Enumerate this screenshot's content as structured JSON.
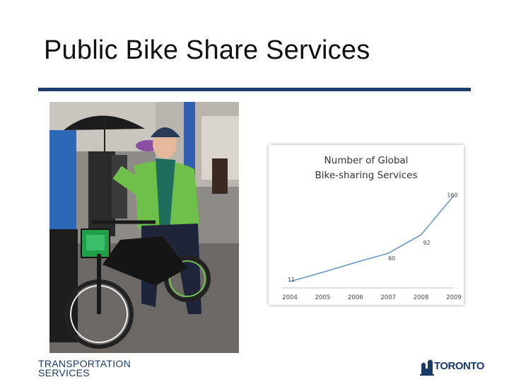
{
  "slide": {
    "title": "Public Bike Share Services",
    "footer_line1": "TRANSPORTATION",
    "footer_line2": "SERVICES",
    "logo_text": "TORONTO",
    "accent_color": "#1f3e6e",
    "logo_icon": "city-hall-icon"
  },
  "photo": {
    "subject": "woman-on-bike-photo"
  },
  "chart_data": {
    "type": "line",
    "title_line1": "Number of Global",
    "title_line2": "Bike-sharing Services",
    "categories": [
      "2004",
      "2005",
      "2006",
      "2007",
      "2008",
      "2009"
    ],
    "series": [
      {
        "values": [
          11,
          27,
          44,
          60,
          92,
          160
        ]
      }
    ],
    "data_labels": [
      {
        "index": 0,
        "text": "11"
      },
      {
        "index": 3,
        "text": "60"
      },
      {
        "index": 4,
        "text": "92"
      },
      {
        "index": 5,
        "text": "160"
      }
    ],
    "ylim": [
      0,
      180
    ],
    "line_color": "#6a98c8",
    "grid": false,
    "legend": "none"
  }
}
